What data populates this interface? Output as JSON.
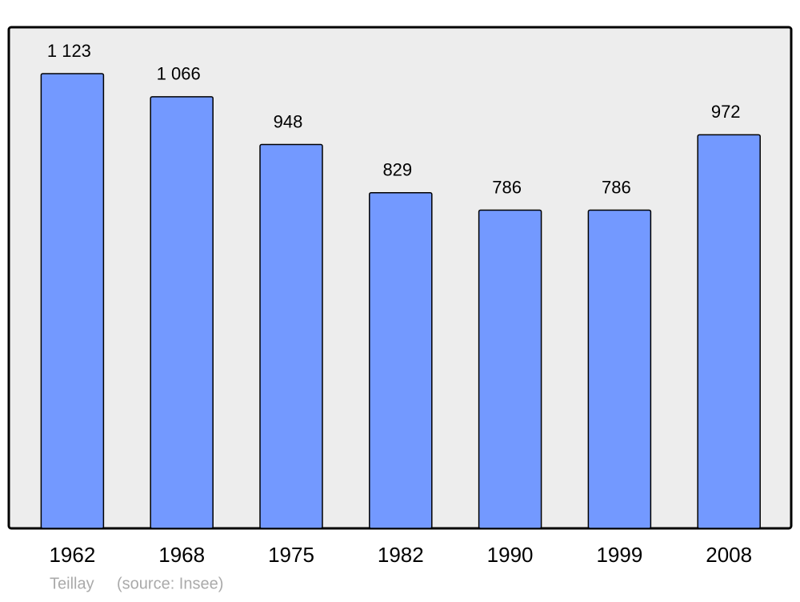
{
  "chart_data": {
    "type": "bar",
    "categories": [
      "1962",
      "1968",
      "1975",
      "1982",
      "1990",
      "1999",
      "2008"
    ],
    "values": [
      1123,
      1066,
      948,
      829,
      786,
      786,
      972
    ],
    "value_labels": [
      "1 123",
      "1 066",
      "948",
      "829",
      "786",
      "786",
      "972"
    ],
    "color": "#7399ff",
    "caption": "Teillay",
    "source": "(source: Insee)"
  }
}
